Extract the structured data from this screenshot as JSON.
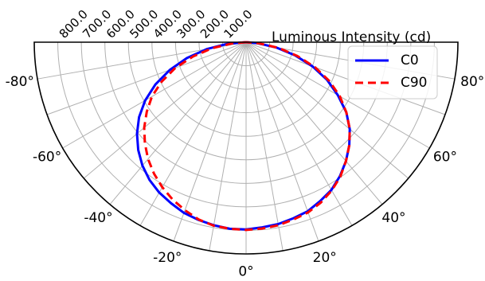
{
  "chart_data": {
    "type": "polar",
    "title": "",
    "radial_axis_label": "Luminous Intensity (cd)",
    "radial_ticks": [
      100,
      200,
      300,
      400,
      500,
      600,
      700,
      800
    ],
    "radial_tick_labels": [
      "100.0",
      "200.0",
      "300.0",
      "400.0",
      "500.0",
      "600.0",
      "700.0",
      "800.0"
    ],
    "rlim": [
      0,
      900
    ],
    "angle_range_deg": [
      -90,
      90
    ],
    "angle_ticks": [
      -80,
      -60,
      -40,
      -20,
      0,
      20,
      40,
      60,
      80
    ],
    "angle_tick_labels": [
      "-80°",
      "-60°",
      "-40°",
      "-20°",
      "0°",
      "20°",
      "40°",
      "60°",
      "80°"
    ],
    "grid": true,
    "legend_position": "top-right",
    "series": [
      {
        "name": "C0",
        "color": "#0000ff",
        "dash": "solid",
        "angles": [
          0,
          5,
          10,
          15,
          20,
          25,
          30,
          35,
          40,
          45,
          50,
          55,
          60,
          65,
          70,
          75,
          80,
          85,
          90,
          -5,
          -10,
          -15,
          -20,
          -25,
          -30,
          -35,
          -40,
          -45,
          -50,
          -55,
          -60,
          -65,
          -70,
          -75,
          -80,
          -85,
          -90
        ],
        "values": [
          796,
          790,
          785,
          775,
          765,
          745,
          725,
          695,
          660,
          620,
          575,
          520,
          450,
          380,
          300,
          215,
          130,
          50,
          0,
          796,
          790,
          782,
          772,
          755,
          738,
          715,
          685,
          648,
          605,
          555,
          495,
          425,
          345,
          260,
          170,
          80,
          0
        ]
      },
      {
        "name": "C90",
        "color": "#ff0000",
        "dash": "dashed",
        "angles": [
          0,
          5,
          10,
          15,
          20,
          25,
          30,
          35,
          40,
          45,
          50,
          55,
          60,
          65,
          70,
          75,
          80,
          85,
          90,
          -5,
          -10,
          -15,
          -20,
          -25,
          -30,
          -35,
          -40,
          -45,
          -50,
          -55,
          -60,
          -65,
          -70,
          -75,
          -80,
          -85,
          -90
        ],
        "values": [
          798,
          795,
          790,
          780,
          770,
          752,
          728,
          698,
          660,
          620,
          575,
          520,
          460,
          390,
          312,
          225,
          140,
          55,
          0,
          796,
          792,
          780,
          760,
          738,
          712,
          682,
          648,
          608,
          565,
          515,
          462,
          395,
          320,
          232,
          145,
          60,
          0
        ]
      }
    ]
  }
}
